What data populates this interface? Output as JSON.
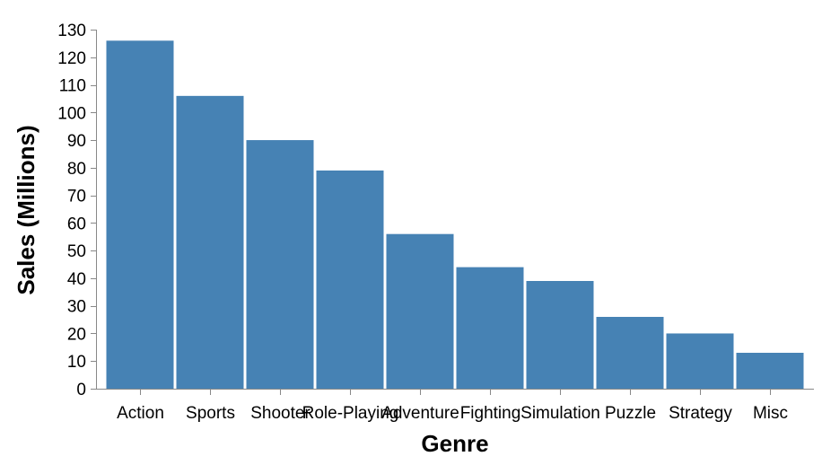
{
  "chart_data": {
    "type": "bar",
    "categories": [
      "Action",
      "Sports",
      "Shooter",
      "Role-Playing",
      "Adventure",
      "Fighting",
      "Simulation",
      "Puzzle",
      "Strategy",
      "Misc"
    ],
    "values": [
      126,
      106,
      90,
      79,
      56,
      44,
      39,
      26,
      20,
      13
    ],
    "xlabel": "Genre",
    "ylabel": "Sales (Millions)",
    "ylim": [
      0,
      130
    ],
    "yticks": [
      0,
      10,
      20,
      30,
      40,
      50,
      60,
      70,
      80,
      90,
      100,
      110,
      120,
      130
    ],
    "grid": false,
    "colors": {
      "bar": "#4682b4",
      "axis": "#888888"
    }
  }
}
